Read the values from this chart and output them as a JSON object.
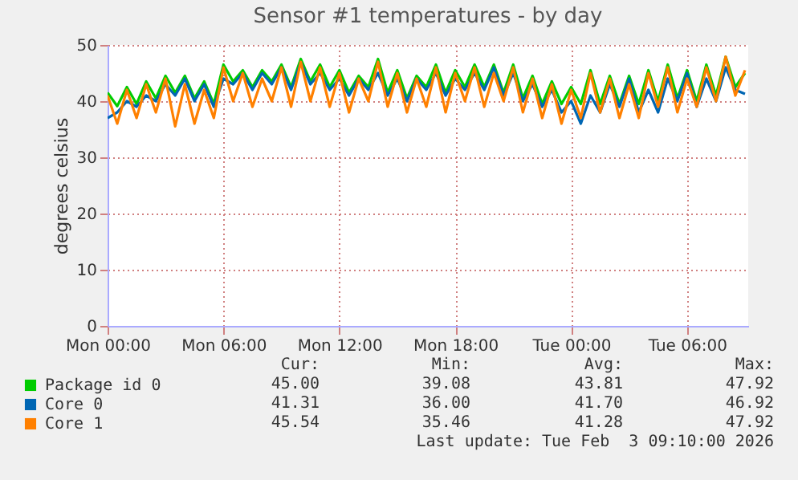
{
  "chart_data": {
    "type": "line",
    "title": "Sensor #1 temperatures - by day",
    "ylabel": "degrees celsius",
    "x": [
      "2026-02-02T00:00",
      "2026-02-02T00:30",
      "2026-02-02T01:00",
      "2026-02-02T01:30",
      "2026-02-02T02:00",
      "2026-02-02T02:30",
      "2026-02-02T03:00",
      "2026-02-02T03:30",
      "2026-02-02T04:00",
      "2026-02-02T04:30",
      "2026-02-02T05:00",
      "2026-02-02T05:30",
      "2026-02-02T06:00",
      "2026-02-02T06:30",
      "2026-02-02T07:00",
      "2026-02-02T07:30",
      "2026-02-02T08:00",
      "2026-02-02T08:30",
      "2026-02-02T09:00",
      "2026-02-02T09:30",
      "2026-02-02T10:00",
      "2026-02-02T10:30",
      "2026-02-02T11:00",
      "2026-02-02T11:30",
      "2026-02-02T12:00",
      "2026-02-02T12:30",
      "2026-02-02T13:00",
      "2026-02-02T13:30",
      "2026-02-02T14:00",
      "2026-02-02T14:30",
      "2026-02-02T15:00",
      "2026-02-02T15:30",
      "2026-02-02T16:00",
      "2026-02-02T16:30",
      "2026-02-02T17:00",
      "2026-02-02T17:30",
      "2026-02-02T18:00",
      "2026-02-02T18:30",
      "2026-02-02T19:00",
      "2026-02-02T19:30",
      "2026-02-02T20:00",
      "2026-02-02T20:30",
      "2026-02-02T21:00",
      "2026-02-02T21:30",
      "2026-02-02T22:00",
      "2026-02-02T22:30",
      "2026-02-02T23:00",
      "2026-02-02T23:30",
      "2026-02-03T00:00",
      "2026-02-03T00:30",
      "2026-02-03T01:00",
      "2026-02-03T01:30",
      "2026-02-03T02:00",
      "2026-02-03T02:30",
      "2026-02-03T03:00",
      "2026-02-03T03:30",
      "2026-02-03T04:00",
      "2026-02-03T04:30",
      "2026-02-03T05:00",
      "2026-02-03T05:30",
      "2026-02-03T06:00",
      "2026-02-03T06:30",
      "2026-02-03T07:00",
      "2026-02-03T07:30",
      "2026-02-03T08:00",
      "2026-02-03T08:30",
      "2026-02-03T09:00"
    ],
    "series": [
      {
        "name": "Package id 0",
        "color": "#00cc00",
        "values": [
          41.5,
          39.1,
          42.5,
          39.5,
          43.5,
          40.5,
          44.5,
          41.5,
          44.5,
          40.5,
          43.5,
          39.5,
          46.5,
          43.5,
          45.5,
          42.5,
          45.5,
          43.5,
          46.5,
          42.5,
          47.5,
          43.5,
          46.5,
          42.5,
          45.5,
          41.5,
          44.5,
          42.5,
          47.5,
          41.5,
          45.5,
          40.5,
          44.5,
          42.5,
          46.5,
          41.5,
          45.5,
          42.5,
          46.5,
          42.5,
          46.5,
          41.5,
          46.5,
          40.5,
          44.5,
          39.5,
          43.5,
          39.5,
          42.5,
          39.5,
          45.5,
          39.5,
          44.5,
          39.5,
          44.5,
          39.5,
          45.5,
          40,
          46.5,
          40.5,
          45.5,
          40,
          46.5,
          41,
          47.9,
          42.5,
          45.0
        ]
      },
      {
        "name": "Core 0",
        "color": "#0066b3",
        "values": [
          37,
          38,
          40,
          39,
          41,
          40,
          43,
          41,
          44,
          40,
          43,
          39,
          44,
          43,
          45,
          42,
          45,
          43,
          46,
          42,
          46.9,
          43,
          45,
          42,
          44,
          41,
          44,
          42,
          45,
          41,
          44,
          40,
          44,
          42,
          45,
          41,
          44,
          42,
          45,
          42,
          46,
          41,
          45,
          40,
          43,
          39,
          42,
          38,
          40,
          36,
          41,
          38,
          43,
          39,
          44,
          38,
          42,
          38,
          44,
          40,
          45,
          39,
          44,
          40,
          46,
          42,
          41.3
        ]
      },
      {
        "name": "Core 1",
        "color": "#ff8000",
        "values": [
          41,
          36,
          42,
          37,
          43,
          38,
          44,
          35.5,
          43,
          36,
          42,
          37,
          46,
          40,
          45,
          39,
          44,
          40,
          46,
          39,
          47,
          40,
          46,
          39,
          45,
          38,
          44,
          40,
          47,
          39,
          45,
          38,
          44,
          39,
          46,
          38,
          45,
          40,
          46,
          39,
          45,
          40,
          46,
          38,
          44,
          37,
          43,
          36,
          42,
          37,
          45,
          38,
          44,
          37,
          43,
          37,
          45,
          39,
          46,
          38,
          44,
          39,
          46,
          40,
          47.9,
          41,
          45.5
        ]
      }
    ],
    "xlim": [
      "2026-02-02T00:00",
      "2026-02-03T09:10"
    ],
    "xticks": [
      {
        "value": "2026-02-02T00:00",
        "label": "Mon 00:00"
      },
      {
        "value": "2026-02-02T06:00",
        "label": "Mon 06:00"
      },
      {
        "value": "2026-02-02T12:00",
        "label": "Mon 12:00"
      },
      {
        "value": "2026-02-02T18:00",
        "label": "Mon 18:00"
      },
      {
        "value": "2026-02-03T00:00",
        "label": "Tue 00:00"
      },
      {
        "value": "2026-02-03T06:00",
        "label": "Tue 06:00"
      }
    ],
    "ylim": [
      0,
      50
    ],
    "yticks": [
      0,
      10,
      20,
      30,
      40,
      50
    ],
    "grid": true,
    "legend": "bottom",
    "annotations": [
      "Cur:",
      "Min:",
      "Avg:",
      "Max:",
      "45.00",
      "39.08",
      "43.81",
      "47.92",
      "41.31",
      "36.00",
      "41.70",
      "46.92",
      "45.54",
      "35.46",
      "41.28",
      "47.92",
      "Last update: Tue Feb  3 09:10:00 2026"
    ]
  }
}
